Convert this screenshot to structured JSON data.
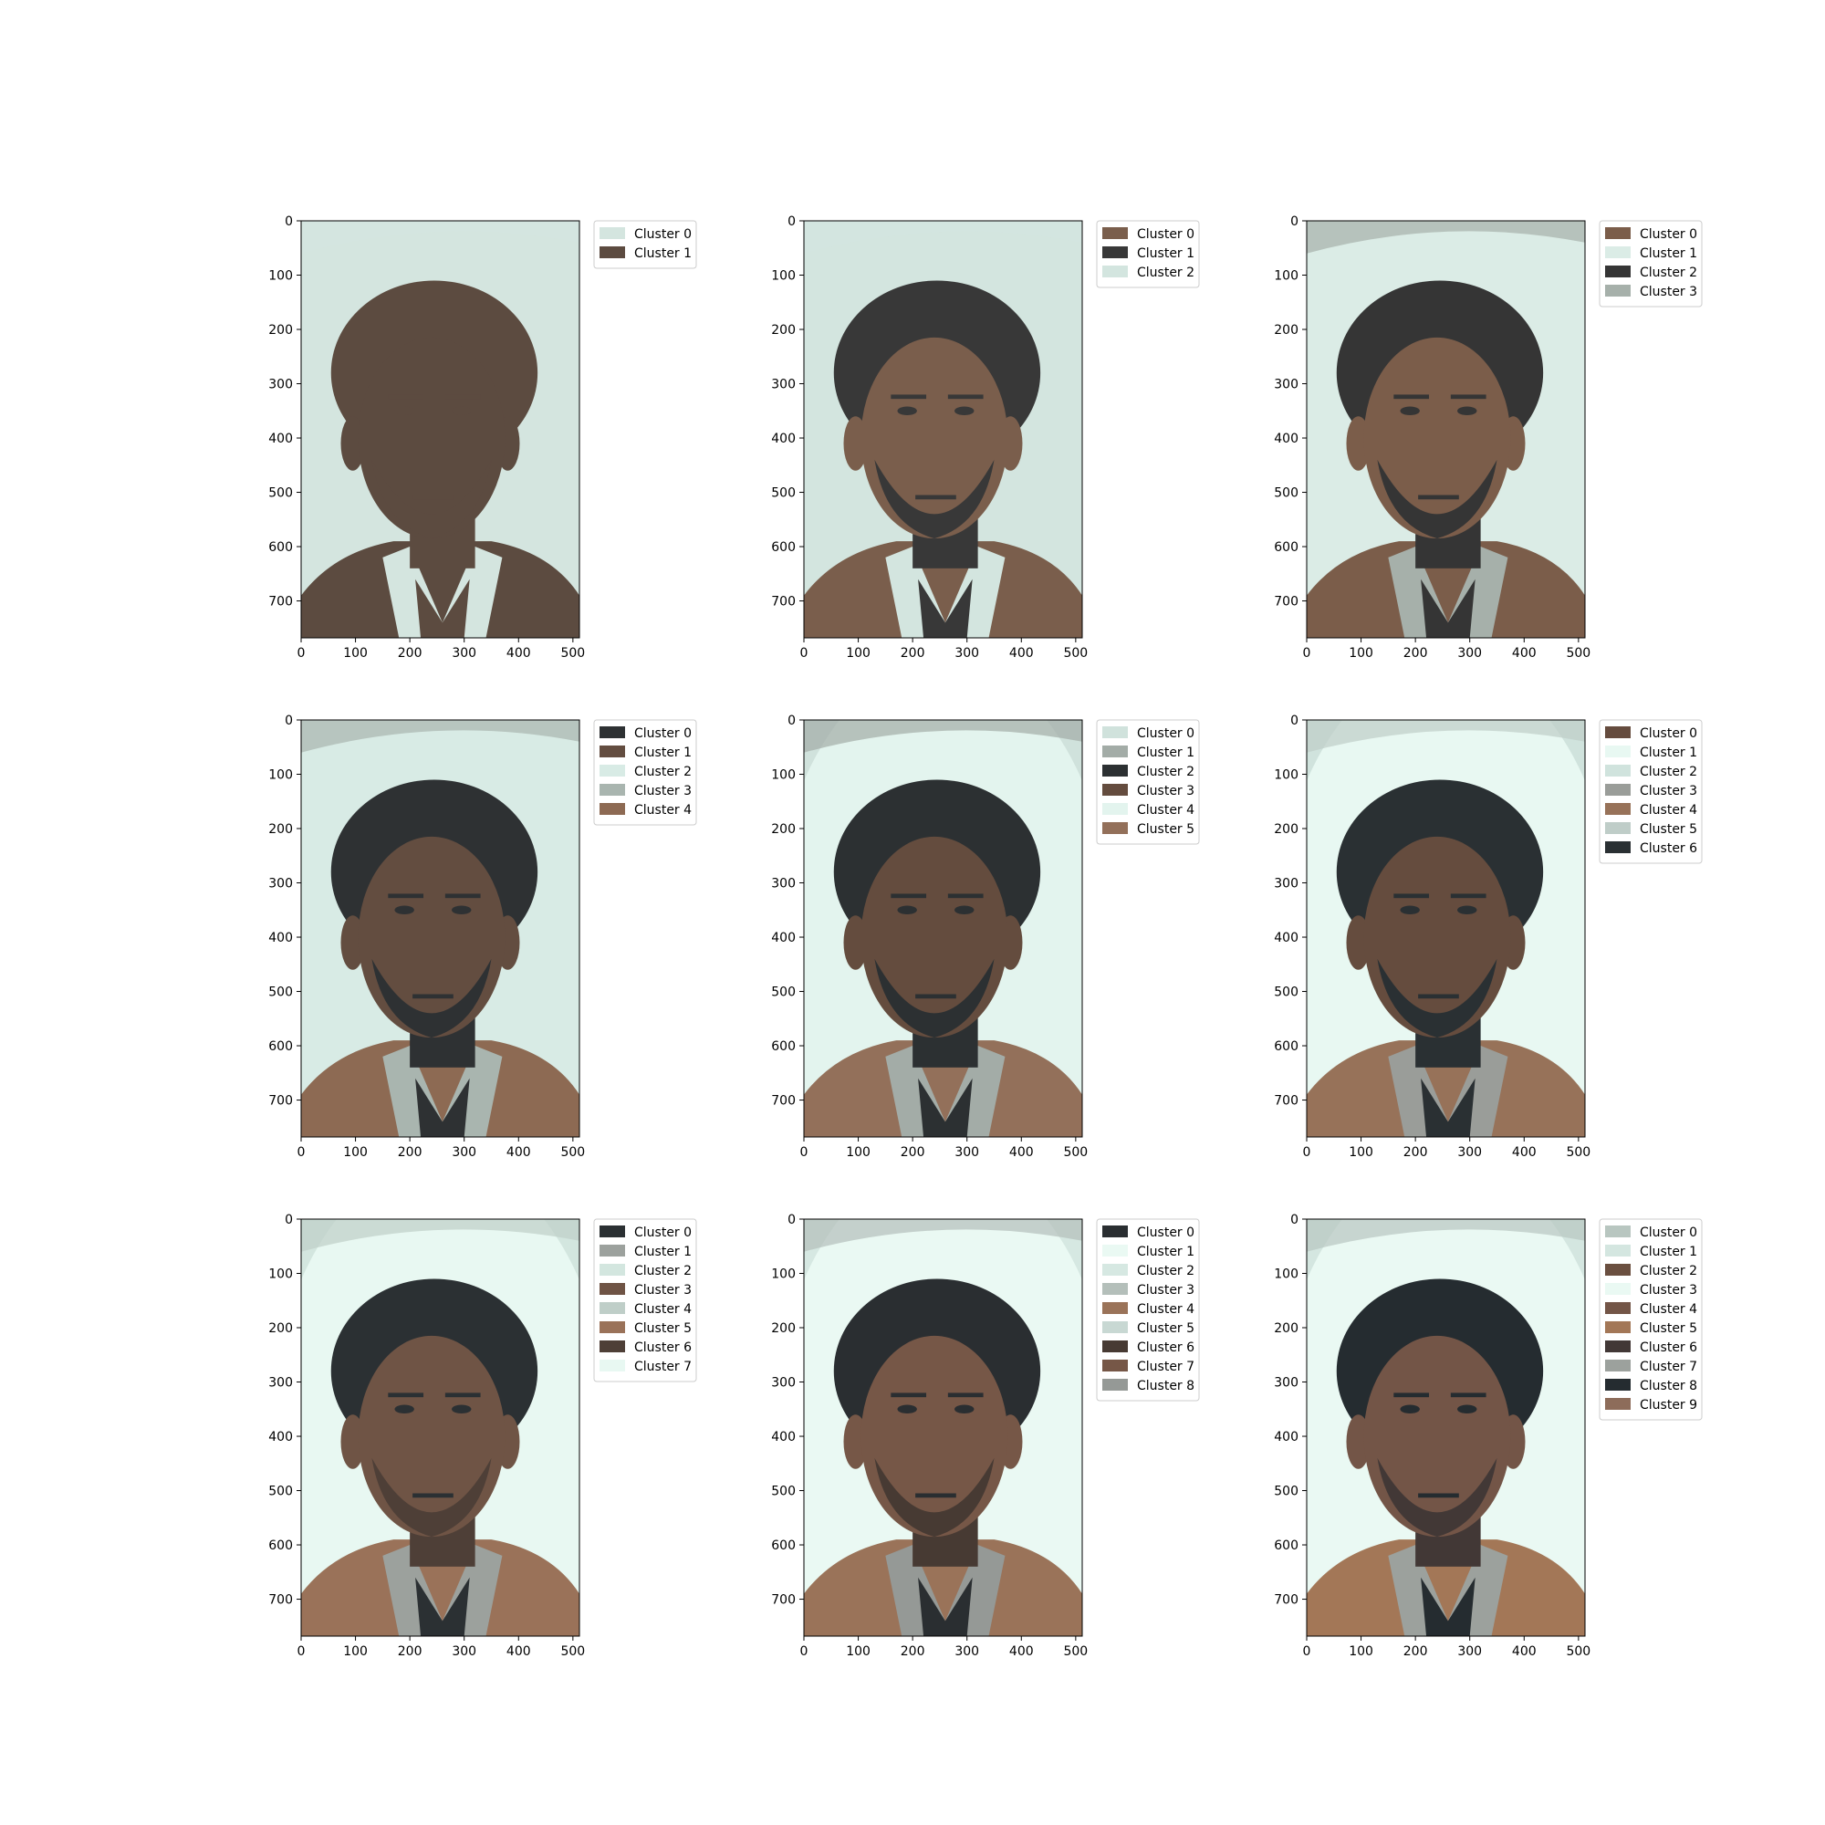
{
  "colors": {
    "bg_light": "#d4e6e0",
    "bg_lighter": "#e4f4ee",
    "bg_gray": "#b6c4bd",
    "hair": "#2c3032",
    "face": "#7a5a45",
    "face_shadow": "#5e4a3e",
    "shirt": "#c8d4d0",
    "jacket": "#8e6a52"
  },
  "chart_data": [
    {
      "type": "image",
      "panel": "k=2",
      "xlim": [
        0,
        512
      ],
      "ylim": [
        768,
        0
      ],
      "xticks": [
        "0",
        "100",
        "200",
        "300",
        "400",
        "500"
      ],
      "yticks": [
        "0",
        "100",
        "200",
        "300",
        "400",
        "500",
        "600",
        "700"
      ],
      "legend_position": "upper-right-outside",
      "legend": [
        {
          "label": "Cluster 0",
          "color": "#d4e5df"
        },
        {
          "label": "Cluster 1",
          "color": "#5c4b40"
        }
      ],
      "palette": {
        "bg": "#d4e5df",
        "bg2": "#d4e5df",
        "bg3": "#d4e5df",
        "hair": "#5c4b40",
        "face": "#5c4b40",
        "shade": "#5c4b40",
        "shirt": "#d4e5df",
        "jacket": "#5c4b40",
        "dark": "#5c4b40"
      }
    },
    {
      "type": "image",
      "panel": "k=3",
      "xlim": [
        0,
        512
      ],
      "ylim": [
        768,
        0
      ],
      "xticks": [
        "0",
        "100",
        "200",
        "300",
        "400",
        "500"
      ],
      "yticks": [
        "0",
        "100",
        "200",
        "300",
        "400",
        "500",
        "600",
        "700"
      ],
      "legend_position": "upper-right-outside",
      "legend": [
        {
          "label": "Cluster 0",
          "color": "#7a5e4c"
        },
        {
          "label": "Cluster 1",
          "color": "#383838"
        },
        {
          "label": "Cluster 2",
          "color": "#d3e5df"
        }
      ],
      "palette": {
        "bg": "#d3e5df",
        "bg2": "#d3e5df",
        "bg3": "#d3e5df",
        "hair": "#383838",
        "face": "#7a5e4c",
        "shade": "#383838",
        "shirt": "#d3e5df",
        "jacket": "#7a5e4c",
        "dark": "#383838"
      }
    },
    {
      "type": "image",
      "panel": "k=4",
      "xlim": [
        0,
        512
      ],
      "ylim": [
        768,
        0
      ],
      "xticks": [
        "0",
        "100",
        "200",
        "300",
        "400",
        "500"
      ],
      "yticks": [
        "0",
        "100",
        "200",
        "300",
        "400",
        "500",
        "600",
        "700"
      ],
      "legend_position": "upper-right-outside",
      "legend": [
        {
          "label": "Cluster 0",
          "color": "#7b5d4a"
        },
        {
          "label": "Cluster 1",
          "color": "#dbece6"
        },
        {
          "label": "Cluster 2",
          "color": "#353535"
        },
        {
          "label": "Cluster 3",
          "color": "#a6b0aa"
        }
      ],
      "palette": {
        "bg": "#dbece6",
        "bg2": "#a6b0aa",
        "bg3": "#dbece6",
        "hair": "#353535",
        "face": "#7b5d4a",
        "shade": "#353535",
        "shirt": "#a6b0aa",
        "jacket": "#7b5d4a",
        "dark": "#353535"
      }
    },
    {
      "type": "image",
      "panel": "k=5",
      "xlim": [
        0,
        512
      ],
      "ylim": [
        768,
        0
      ],
      "xticks": [
        "0",
        "100",
        "200",
        "300",
        "400",
        "500"
      ],
      "yticks": [
        "0",
        "100",
        "200",
        "300",
        "400",
        "500",
        "600",
        "700"
      ],
      "legend_position": "upper-right-outside",
      "legend": [
        {
          "label": "Cluster 0",
          "color": "#2e3133"
        },
        {
          "label": "Cluster 1",
          "color": "#634d40"
        },
        {
          "label": "Cluster 2",
          "color": "#d8ebe5"
        },
        {
          "label": "Cluster 3",
          "color": "#a9b5af"
        },
        {
          "label": "Cluster 4",
          "color": "#8d6a53"
        }
      ],
      "palette": {
        "bg": "#d8ebe5",
        "bg2": "#a9b5af",
        "bg3": "#d8ebe5",
        "hair": "#2e3133",
        "face": "#634d40",
        "shade": "#2e3133",
        "shirt": "#a9b5af",
        "jacket": "#8d6a53",
        "dark": "#2e3133"
      }
    },
    {
      "type": "image",
      "panel": "k=6",
      "xlim": [
        0,
        512
      ],
      "ylim": [
        768,
        0
      ],
      "xticks": [
        "0",
        "100",
        "200",
        "300",
        "400",
        "500"
      ],
      "yticks": [
        "0",
        "100",
        "200",
        "300",
        "400",
        "500",
        "600",
        "700"
      ],
      "legend_position": "upper-right-outside",
      "legend": [
        {
          "label": "Cluster 0",
          "color": "#d0e2dc"
        },
        {
          "label": "Cluster 1",
          "color": "#a3aca7"
        },
        {
          "label": "Cluster 2",
          "color": "#2c3032"
        },
        {
          "label": "Cluster 3",
          "color": "#644c3e"
        },
        {
          "label": "Cluster 4",
          "color": "#e3f4ee"
        },
        {
          "label": "Cluster 5",
          "color": "#93705a"
        }
      ],
      "palette": {
        "bg": "#e3f4ee",
        "bg2": "#a3aca7",
        "bg3": "#d0e2dc",
        "hair": "#2c3032",
        "face": "#644c3e",
        "shade": "#2c3032",
        "shirt": "#a3aca7",
        "jacket": "#93705a",
        "dark": "#2c3032"
      }
    },
    {
      "type": "image",
      "panel": "k=7",
      "xlim": [
        0,
        512
      ],
      "ylim": [
        768,
        0
      ],
      "xticks": [
        "0",
        "100",
        "200",
        "300",
        "400",
        "500"
      ],
      "yticks": [
        "0",
        "100",
        "200",
        "300",
        "400",
        "500",
        "600",
        "700"
      ],
      "legend_position": "upper-right-outside",
      "legend": [
        {
          "label": "Cluster 0",
          "color": "#654c3e"
        },
        {
          "label": "Cluster 1",
          "color": "#e8f8f2"
        },
        {
          "label": "Cluster 2",
          "color": "#d0e3dd"
        },
        {
          "label": "Cluster 3",
          "color": "#9a9d99"
        },
        {
          "label": "Cluster 4",
          "color": "#977259"
        },
        {
          "label": "Cluster 5",
          "color": "#bfcdc8"
        },
        {
          "label": "Cluster 6",
          "color": "#2a3033"
        }
      ],
      "palette": {
        "bg": "#e8f8f2",
        "bg2": "#bfcdc8",
        "bg3": "#d0e3dd",
        "hair": "#2a3033",
        "face": "#654c3e",
        "shade": "#2a3033",
        "shirt": "#9a9d99",
        "jacket": "#977259",
        "dark": "#2a3033"
      }
    },
    {
      "type": "image",
      "panel": "k=8",
      "xlim": [
        0,
        512
      ],
      "ylim": [
        768,
        0
      ],
      "xticks": [
        "0",
        "100",
        "200",
        "300",
        "400",
        "500"
      ],
      "yticks": [
        "0",
        "100",
        "200",
        "300",
        "400",
        "500",
        "600",
        "700"
      ],
      "legend_position": "upper-right-outside",
      "legend": [
        {
          "label": "Cluster 0",
          "color": "#2b3033"
        },
        {
          "label": "Cluster 1",
          "color": "#9ca19d"
        },
        {
          "label": "Cluster 2",
          "color": "#d3e6df"
        },
        {
          "label": "Cluster 3",
          "color": "#6f5445"
        },
        {
          "label": "Cluster 4",
          "color": "#bfcec8"
        },
        {
          "label": "Cluster 5",
          "color": "#9a7259"
        },
        {
          "label": "Cluster 6",
          "color": "#4e3f37"
        },
        {
          "label": "Cluster 7",
          "color": "#e8f8f2"
        }
      ],
      "palette": {
        "bg": "#e8f8f2",
        "bg2": "#bfcec8",
        "bg3": "#d3e6df",
        "hair": "#2b3033",
        "face": "#6f5445",
        "shade": "#4e3f37",
        "shirt": "#9ca19d",
        "jacket": "#9a7259",
        "dark": "#2b3033"
      }
    },
    {
      "type": "image",
      "panel": "k=9",
      "xlim": [
        0,
        512
      ],
      "ylim": [
        768,
        0
      ],
      "xticks": [
        "0",
        "100",
        "200",
        "300",
        "400",
        "500"
      ],
      "yticks": [
        "0",
        "100",
        "200",
        "300",
        "400",
        "500",
        "600",
        "700"
      ],
      "legend_position": "upper-right-outside",
      "legend": [
        {
          "label": "Cluster 0",
          "color": "#2a2e31"
        },
        {
          "label": "Cluster 1",
          "color": "#eaf9f3"
        },
        {
          "label": "Cluster 2",
          "color": "#d6e8e2"
        },
        {
          "label": "Cluster 3",
          "color": "#b4bfba"
        },
        {
          "label": "Cluster 4",
          "color": "#9a7359"
        },
        {
          "label": "Cluster 5",
          "color": "#c8d8d3"
        },
        {
          "label": "Cluster 6",
          "color": "#473a33"
        },
        {
          "label": "Cluster 7",
          "color": "#765747"
        },
        {
          "label": "Cluster 8",
          "color": "#959996"
        }
      ],
      "palette": {
        "bg": "#eaf9f3",
        "bg2": "#b4bfba",
        "bg3": "#d6e8e2",
        "hair": "#2a2e31",
        "face": "#765747",
        "shade": "#473a33",
        "shirt": "#959996",
        "jacket": "#9a7359",
        "dark": "#2a2e31"
      }
    },
    {
      "type": "image",
      "panel": "k=10",
      "xlim": [
        0,
        512
      ],
      "ylim": [
        768,
        0
      ],
      "xticks": [
        "0",
        "100",
        "200",
        "300",
        "400",
        "500"
      ],
      "yticks": [
        "0",
        "100",
        "200",
        "300",
        "400",
        "500",
        "600",
        "700"
      ],
      "legend_position": "upper-right-outside",
      "legend": [
        {
          "label": "Cluster 0",
          "color": "#b8c6c0"
        },
        {
          "label": "Cluster 1",
          "color": "#d4e6e0"
        },
        {
          "label": "Cluster 2",
          "color": "#6a4f40"
        },
        {
          "label": "Cluster 3",
          "color": "#eaf9f3"
        },
        {
          "label": "Cluster 4",
          "color": "#735547"
        },
        {
          "label": "Cluster 5",
          "color": "#a37757"
        },
        {
          "label": "Cluster 6",
          "color": "#423836"
        },
        {
          "label": "Cluster 7",
          "color": "#9ca19d"
        },
        {
          "label": "Cluster 8",
          "color": "#252c30"
        },
        {
          "label": "Cluster 9",
          "color": "#8d6c5a"
        }
      ],
      "palette": {
        "bg": "#eaf9f3",
        "bg2": "#b8c6c0",
        "bg3": "#d4e6e0",
        "hair": "#252c30",
        "face": "#735547",
        "shade": "#423836",
        "shirt": "#9ca19d",
        "jacket": "#a37757",
        "dark": "#252c30"
      }
    }
  ]
}
